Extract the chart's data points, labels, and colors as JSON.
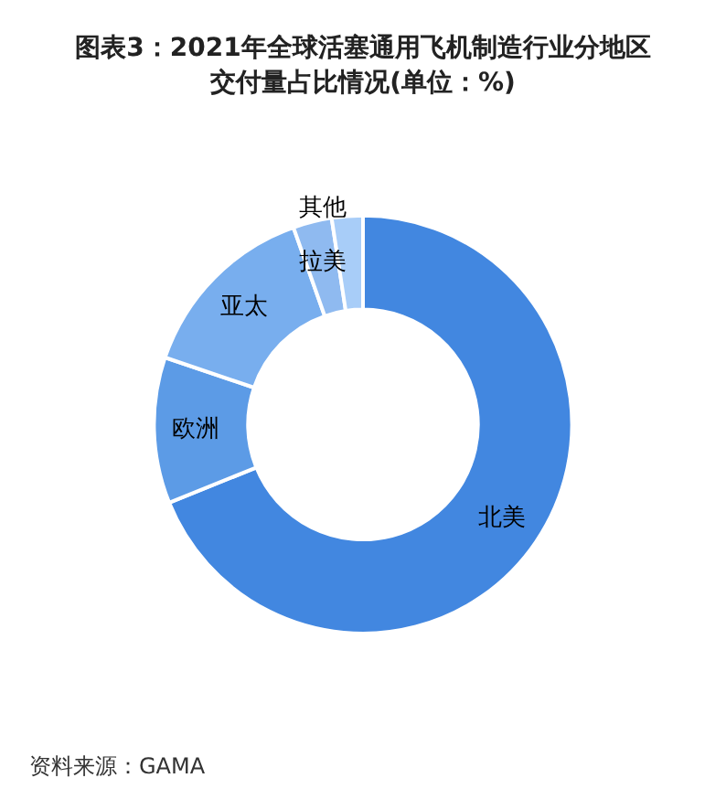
{
  "chart_data": {
    "type": "donut",
    "title": "图表3：2021年全球活塞通用飞机制造行业分地区交付量占比情况(单位：%)",
    "categories": [
      "北美",
      "欧洲",
      "亚太",
      "拉美",
      "其他"
    ],
    "values": [
      68.9,
      11.3,
      14.4,
      3.0,
      2.4
    ],
    "colors": [
      "#4287e0",
      "#5c9be6",
      "#78aeee",
      "#8fbaf0",
      "#a8cdf8"
    ],
    "legend": false,
    "annotations": [
      "资料来源：GAMA"
    ]
  }
}
